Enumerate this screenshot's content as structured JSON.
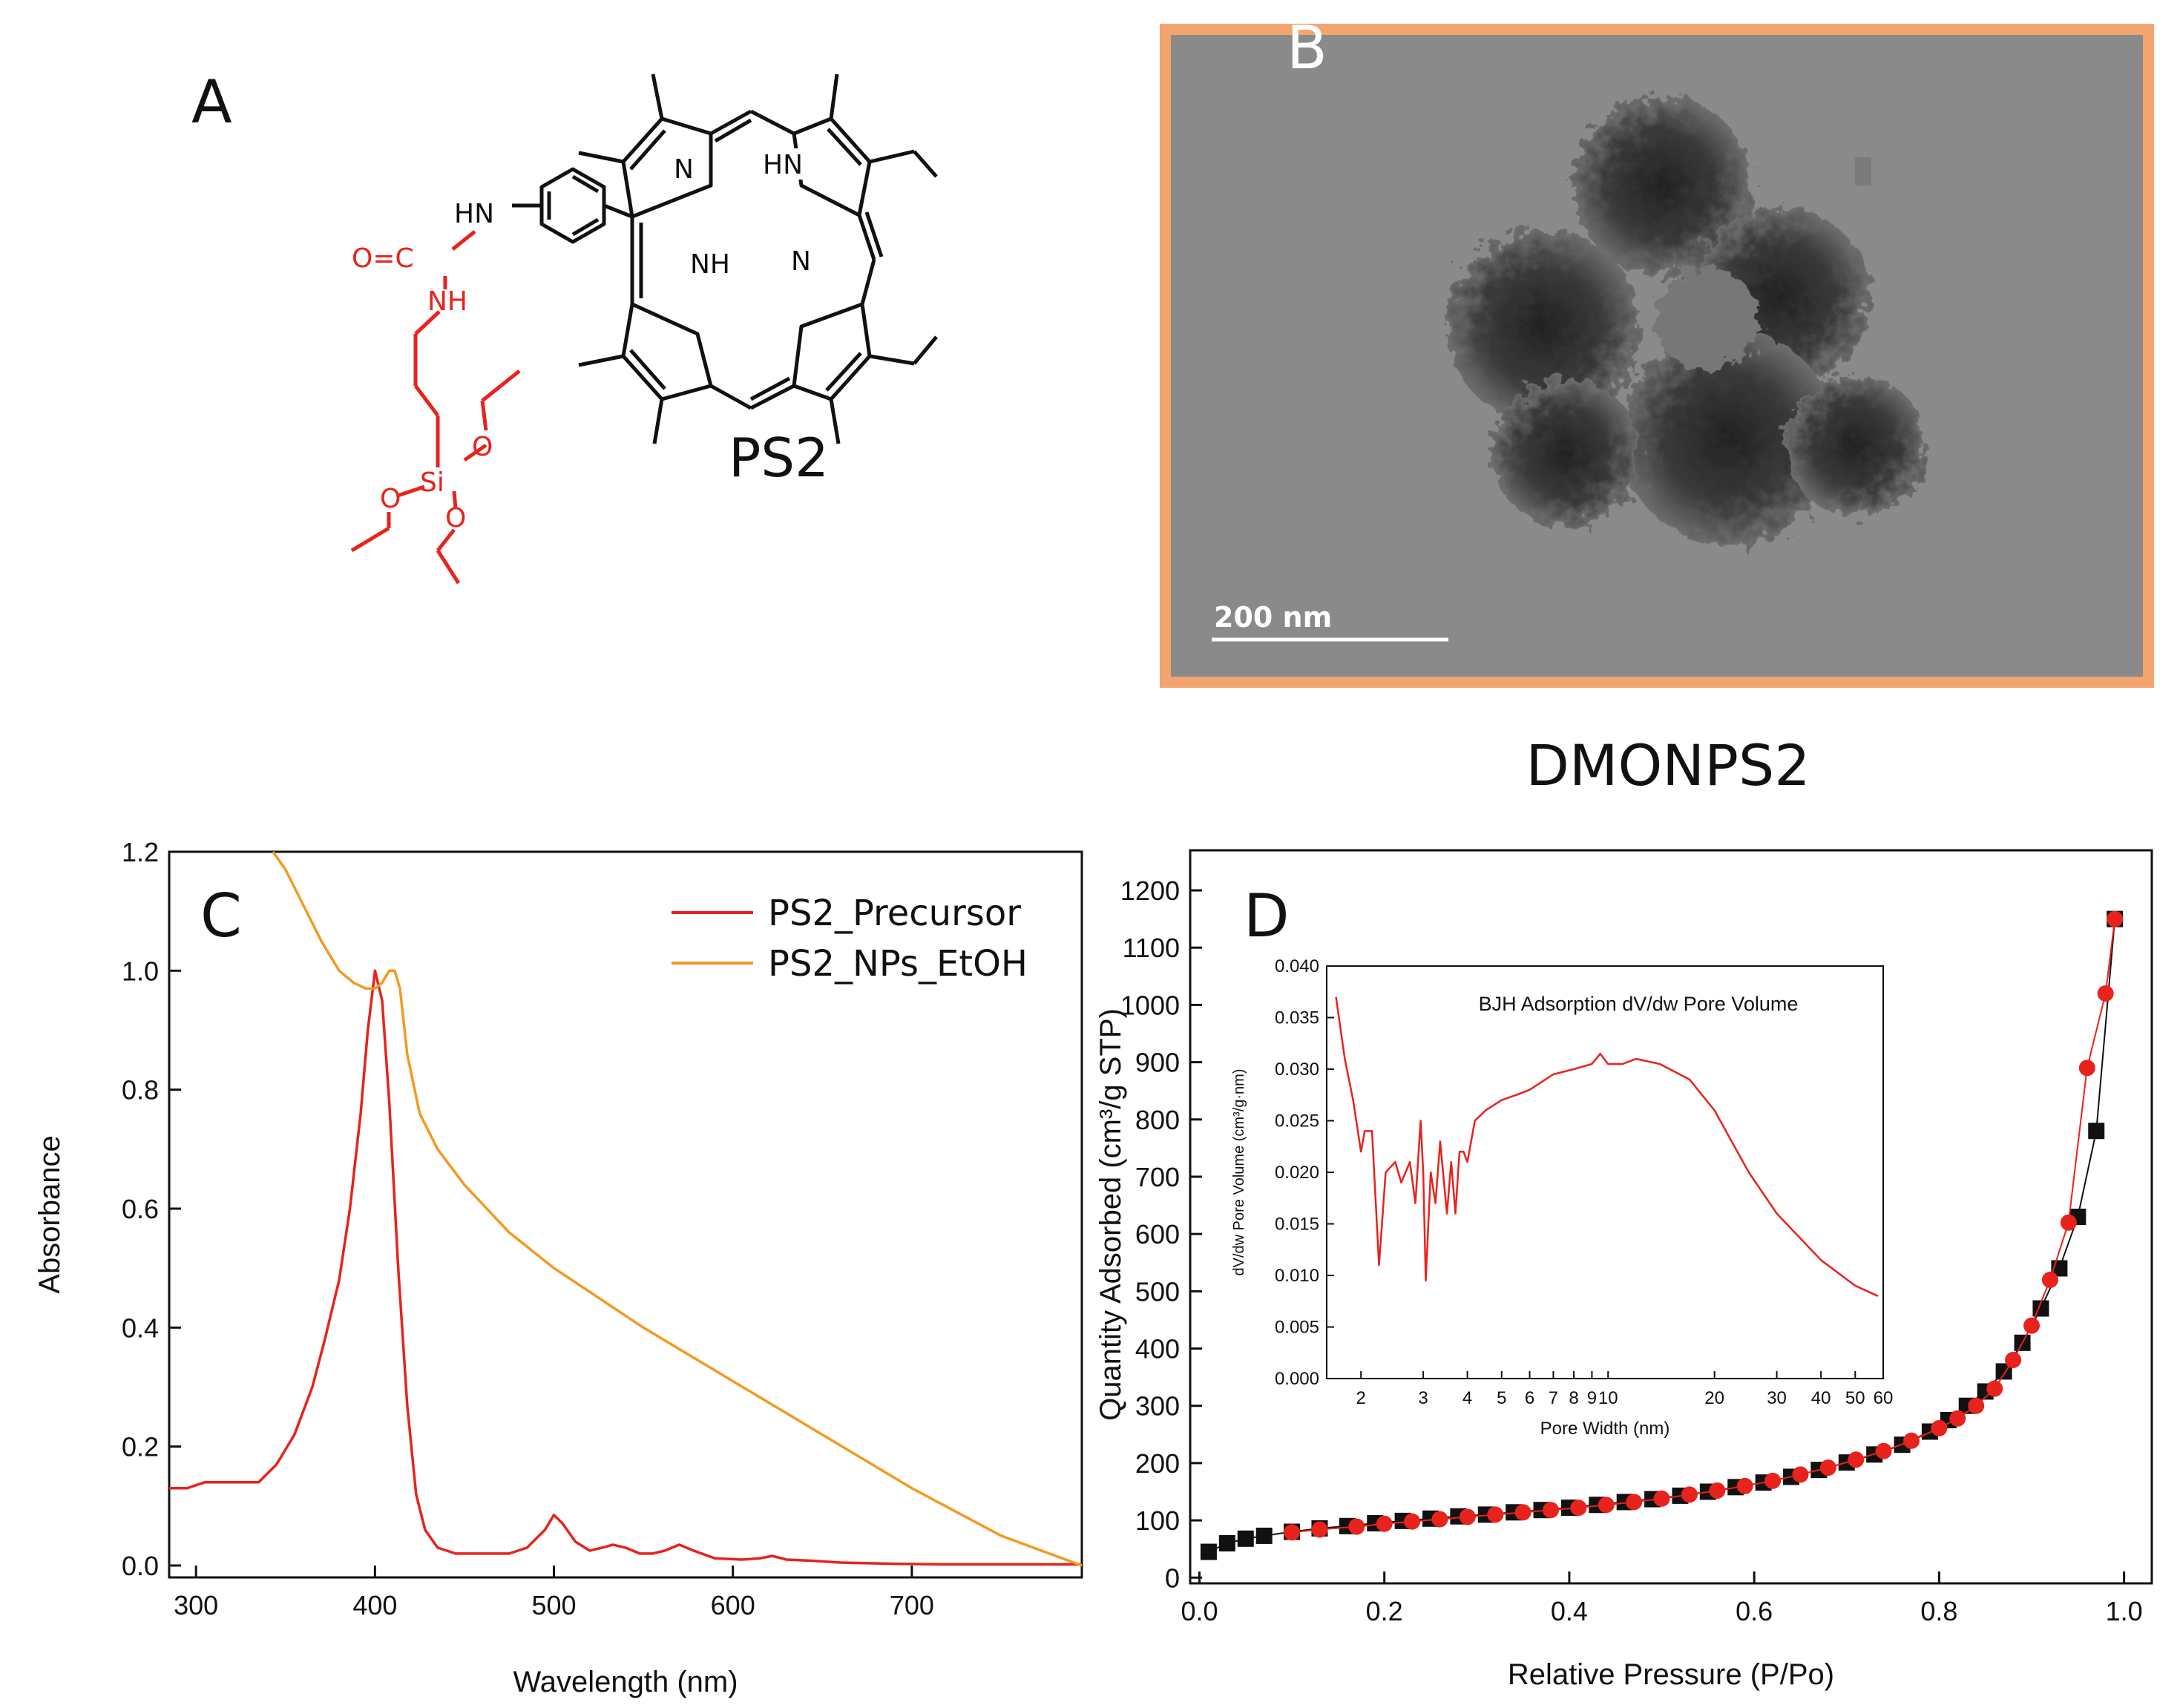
{
  "panels": {
    "a": {
      "letter": "A",
      "compound_label": "PS2",
      "atoms": {
        "hn_top": "HN",
        "o_c": "O=C",
        "nh_red": "NH",
        "si": "Si",
        "o1": "O",
        "o2": "O",
        "o3": "O",
        "n1": "N",
        "hn_ring": "HN",
        "nh_ring": "NH",
        "n2": "N"
      },
      "colors": {
        "red": "#e8221c",
        "black": "#111111"
      }
    },
    "b": {
      "letter": "B",
      "scale_bar_label": "200 nm",
      "caption": "DMONPS2",
      "colors": {
        "frame": "#f4a46f",
        "background": "#8a8a8a"
      }
    },
    "c": {
      "letter": "C"
    },
    "d": {
      "letter": "D"
    }
  },
  "chart_data": [
    {
      "id": "C",
      "type": "line",
      "xlabel": "Wavelength (nm)",
      "ylabel": "Absorbance",
      "xlim": [
        285,
        795
      ],
      "ylim": [
        -0.02,
        1.2
      ],
      "xticks": [
        300,
        400,
        500,
        600,
        700
      ],
      "xtick_labels": [
        "300",
        "400",
        "500",
        "600",
        "700"
      ],
      "yticks": [
        0.0,
        0.2,
        0.4,
        0.6,
        0.8,
        1.0,
        1.2
      ],
      "ytick_labels": [
        "0.0",
        "0.2",
        "0.4",
        "0.6",
        "0.8",
        "1.0",
        "1.2"
      ],
      "legend_position": "top-right",
      "grid": false,
      "series": [
        {
          "name": "PS2_Precursor",
          "color": "#e8221c",
          "x": [
            285,
            295,
            305,
            315,
            325,
            335,
            345,
            355,
            365,
            372,
            380,
            386,
            392,
            396,
            400,
            404,
            408,
            413,
            418,
            423,
            428,
            435,
            445,
            460,
            475,
            485,
            495,
            500,
            505,
            512,
            520,
            527,
            533,
            540,
            548,
            555,
            562,
            570,
            578,
            590,
            605,
            615,
            622,
            630,
            645,
            660,
            690,
            720,
            750,
            795
          ],
          "y": [
            0.13,
            0.13,
            0.14,
            0.14,
            0.14,
            0.14,
            0.17,
            0.22,
            0.3,
            0.38,
            0.48,
            0.6,
            0.76,
            0.9,
            1.0,
            0.95,
            0.78,
            0.5,
            0.27,
            0.12,
            0.06,
            0.03,
            0.02,
            0.02,
            0.02,
            0.03,
            0.06,
            0.085,
            0.07,
            0.04,
            0.025,
            0.03,
            0.035,
            0.03,
            0.02,
            0.02,
            0.025,
            0.035,
            0.025,
            0.012,
            0.01,
            0.012,
            0.016,
            0.01,
            0.008,
            0.005,
            0.003,
            0.002,
            0.002,
            0.002
          ]
        },
        {
          "name": "PS2_NPs_EtOH",
          "color": "#f29a21",
          "x": [
            343,
            350,
            360,
            370,
            380,
            388,
            395,
            400,
            404,
            408,
            411,
            414,
            418,
            425,
            435,
            450,
            475,
            500,
            550,
            600,
            650,
            700,
            750,
            795
          ],
          "y": [
            1.2,
            1.17,
            1.11,
            1.05,
            1.0,
            0.98,
            0.97,
            0.97,
            0.98,
            1.0,
            1.0,
            0.97,
            0.86,
            0.76,
            0.7,
            0.64,
            0.56,
            0.5,
            0.4,
            0.31,
            0.22,
            0.13,
            0.05,
            0.0
          ]
        }
      ]
    },
    {
      "id": "D",
      "type": "scatter",
      "xlabel": "Relative Pressure (P/Po)",
      "ylabel": "Quantity Adsorbed (cm³/g STP)",
      "xlim": [
        -0.01,
        1.03
      ],
      "ylim": [
        -10,
        1270
      ],
      "xticks": [
        0.0,
        0.2,
        0.4,
        0.6,
        0.8,
        1.0
      ],
      "xtick_labels": [
        "0.0",
        "0.2",
        "0.4",
        "0.6",
        "0.8",
        "1.0"
      ],
      "yticks": [
        0,
        100,
        200,
        300,
        400,
        500,
        600,
        700,
        800,
        900,
        1000,
        1100,
        1200
      ],
      "ytick_labels": [
        "0",
        "100",
        "200",
        "300",
        "400",
        "500",
        "600",
        "700",
        "800",
        "900",
        "1000",
        "1100",
        "1200"
      ],
      "grid": false,
      "series": [
        {
          "marker": "square",
          "color": "#111111",
          "x": [
            0.01,
            0.03,
            0.05,
            0.07,
            0.1,
            0.13,
            0.16,
            0.19,
            0.22,
            0.25,
            0.28,
            0.31,
            0.34,
            0.37,
            0.4,
            0.43,
            0.46,
            0.49,
            0.52,
            0.55,
            0.58,
            0.61,
            0.64,
            0.67,
            0.7,
            0.73,
            0.76,
            0.79,
            0.81,
            0.83,
            0.85,
            0.87,
            0.89,
            0.91,
            0.93,
            0.95,
            0.97,
            0.99
          ],
          "y": [
            45,
            60,
            68,
            73,
            80,
            86,
            90,
            95,
            99,
            103,
            107,
            110,
            114,
            118,
            122,
            127,
            132,
            137,
            143,
            150,
            158,
            166,
            176,
            188,
            201,
            215,
            232,
            255,
            275,
            300,
            325,
            360,
            410,
            470,
            540,
            630,
            780,
            1150
          ]
        },
        {
          "marker": "circle",
          "color": "#e8221c",
          "x": [
            0.1,
            0.13,
            0.17,
            0.2,
            0.23,
            0.26,
            0.29,
            0.32,
            0.35,
            0.38,
            0.41,
            0.44,
            0.47,
            0.5,
            0.53,
            0.56,
            0.59,
            0.62,
            0.65,
            0.68,
            0.71,
            0.74,
            0.77,
            0.8,
            0.82,
            0.84,
            0.86,
            0.88,
            0.9,
            0.92,
            0.94,
            0.96,
            0.98,
            0.99
          ],
          "y": [
            79,
            84,
            89,
            94,
            98,
            102,
            106,
            110,
            114,
            118,
            122,
            127,
            132,
            138,
            145,
            152,
            160,
            169,
            180,
            192,
            206,
            221,
            239,
            261,
            278,
            300,
            330,
            380,
            440,
            520,
            620,
            890,
            1020,
            1150
          ]
        }
      ],
      "inset": {
        "type": "line",
        "title": "BJH Adsorption dV/dw Pore Volume",
        "xlabel": "Pore Width (nm)",
        "ylabel": "dV/dw Pore Volume (cm³/g·nm)",
        "xscale": "log",
        "xlim": [
          1.6,
          60
        ],
        "ylim": [
          0,
          0.04
        ],
        "xticks": [
          2,
          3,
          4,
          5,
          6,
          7,
          8,
          9,
          10,
          20,
          30,
          40,
          50,
          60
        ],
        "xtick_labels": [
          "2",
          "3",
          "4",
          "5",
          "6",
          "7",
          "8",
          "9",
          "10",
          "20",
          "30",
          "40",
          "50",
          "60"
        ],
        "yticks": [
          0.0,
          0.005,
          0.01,
          0.015,
          0.02,
          0.025,
          0.03,
          0.035,
          0.04
        ],
        "ytick_labels": [
          "0.000",
          "0.005",
          "0.010",
          "0.015",
          "0.020",
          "0.025",
          "0.030",
          "0.035",
          "0.040"
        ],
        "color": "#e8221c",
        "x": [
          1.7,
          1.8,
          1.9,
          2.0,
          2.05,
          2.15,
          2.25,
          2.35,
          2.5,
          2.6,
          2.75,
          2.85,
          2.95,
          3.0,
          3.05,
          3.15,
          3.25,
          3.35,
          3.5,
          3.6,
          3.7,
          3.8,
          3.9,
          4.0,
          4.2,
          4.5,
          5.0,
          5.5,
          6.0,
          7.0,
          8.0,
          9.0,
          9.5,
          10.0,
          11.0,
          12.0,
          14.0,
          17.0,
          20.0,
          25.0,
          30.0,
          40.0,
          50.0,
          58.0
        ],
        "y": [
          0.037,
          0.031,
          0.027,
          0.022,
          0.024,
          0.024,
          0.011,
          0.02,
          0.021,
          0.019,
          0.021,
          0.017,
          0.025,
          0.02,
          0.0095,
          0.02,
          0.017,
          0.023,
          0.016,
          0.021,
          0.016,
          0.022,
          0.022,
          0.021,
          0.025,
          0.026,
          0.027,
          0.0275,
          0.028,
          0.0295,
          0.03,
          0.0305,
          0.0315,
          0.0305,
          0.0305,
          0.031,
          0.0305,
          0.029,
          0.026,
          0.02,
          0.016,
          0.0115,
          0.009,
          0.008
        ]
      }
    }
  ]
}
